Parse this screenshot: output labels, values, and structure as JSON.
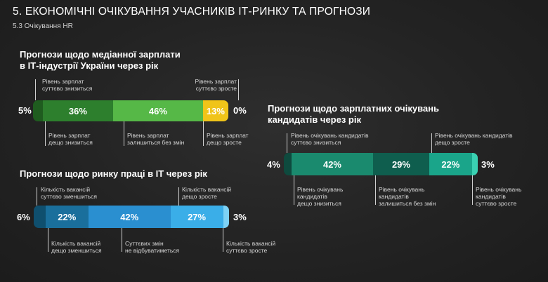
{
  "header": {
    "title": "5. ЕКОНОМІЧНІ ОЧІКУВАННЯ УЧАСНИКІВ ІТ-РИНКУ ТА ПРОГНОЗИ",
    "subtitle": "5.3 Очікування HR"
  },
  "chart_data": [
    {
      "type": "bar",
      "orientation": "horizontal-stacked",
      "title": "Прогнози щодо медіанної зарплати\nв ІТ-індустрії України через рік",
      "categories": [
        "Рівень зарплат суттєво знизиться",
        "Рівень зарплат дещо знизиться",
        "Рівень зарплат залишиться без змін",
        "Рівень зарплат дещо зросте",
        "Рівень зарплат суттєво зросте"
      ],
      "values": [
        5,
        36,
        46,
        13,
        0
      ],
      "labels": [
        "5%",
        "36%",
        "46%",
        "13%",
        "0%"
      ],
      "colors": [
        "#1f5c1f",
        "#2d7f2d",
        "#56b847",
        "#f0c419",
        "#f0c419"
      ]
    },
    {
      "type": "bar",
      "orientation": "horizontal-stacked",
      "title": "Прогнози щодо зарплатних очікувань\nкандидатів через рік",
      "categories": [
        "Рівень очікувань кандидатів суттєво знизиться",
        "Рівень очікувань кандидатів дещо знизиться",
        "Рівень очікувань кандидатів залишиться без змін",
        "Рівень очікувань кандидатів дещо зросте",
        "Рівень очікувань кандидатів суттєво зросте"
      ],
      "values": [
        4,
        42,
        29,
        22,
        3
      ],
      "labels": [
        "4%",
        "42%",
        "29%",
        "22%",
        "3%"
      ],
      "colors": [
        "#0e4a3e",
        "#1a8a6e",
        "#0f5e4e",
        "#1aa58a",
        "#3ad1b2"
      ]
    },
    {
      "type": "bar",
      "orientation": "horizontal-stacked",
      "title": "Прогнози щодо ринку праці в ІТ через рік",
      "categories": [
        "Кількість вакансій суттєво зменшиться",
        "Кількість вакансій дещо зменшиться",
        "Суттєвих змін не відбуватиметься",
        "Кількість вакансій дещо зросте",
        "Кількість вакансій суттєво зросте"
      ],
      "values": [
        6,
        22,
        42,
        27,
        3
      ],
      "labels": [
        "6%",
        "22%",
        "42%",
        "27%",
        "3%"
      ],
      "colors": [
        "#0f4f6e",
        "#1a6f9c",
        "#2a8fd0",
        "#3aaee8",
        "#7ed2f5"
      ]
    }
  ],
  "chart1_labels": {
    "top_left": "Рівень зарплат\nсуттєво знизиться",
    "top_right": "Рівень зарплат\nсуттєво зросте",
    "bottom": [
      "Рівень зарплат\nдещо знизиться",
      "Рівень зарплат\nзалишиться без змін",
      "Рівень зарплат\nдещо зросте"
    ]
  },
  "chart2_labels": {
    "top": [
      "Рівень очікувань кандидатів\nсуттєво знизиться",
      "Рівень очікувань кандидатів\nдещо зросте"
    ],
    "bottom": [
      "Рівень очікувань\nкандидатів\nдещо знизиться",
      "Рівень очікувань\nкандидатів\nзалишиться без змін",
      "Рівень очікувань\nкандидатів\nсуттєво зросте"
    ]
  },
  "chart3_labels": {
    "top": [
      "Кількість вакансій\nсуттєво зменшиться",
      "Кількість вакансій\nдещо зросте"
    ],
    "bottom": [
      "Кількість вакансій\nдещо зменшиться",
      "Суттєвих змін\nне відбуватиметься",
      "Кількість вакансій\nсуттєво зросте"
    ]
  }
}
